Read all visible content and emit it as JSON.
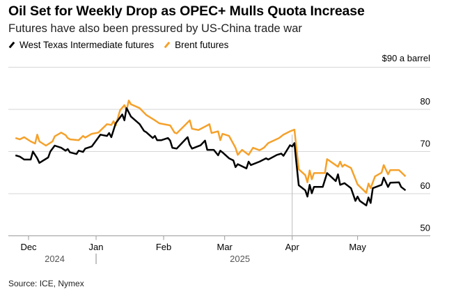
{
  "header": {
    "title": "Oil Set for Weekly Drop as OPEC+ Mulls Quota Increase",
    "subtitle": "Futures have also been pressured by US-China trade war"
  },
  "source": "Source: ICE, Nymex",
  "chart_data": {
    "type": "line",
    "title": "Oil Set for Weekly Drop as OPEC+ Mulls Quota Increase",
    "subtitle": "Futures have also been pressured by US-China trade war",
    "ylabel": "$90 a barrel",
    "ylim": [
      50,
      90
    ],
    "yticks": [
      50,
      60,
      70,
      80
    ],
    "ytick_labels": [
      "50",
      "60",
      "70",
      "80"
    ],
    "xlim": [
      "2024-11-22",
      "2025-05-30"
    ],
    "xticks": [
      {
        "date": "2024-12-01",
        "label": "Dec"
      },
      {
        "date": "2025-01-01",
        "label": "Jan"
      },
      {
        "date": "2025-02-01",
        "label": "Feb"
      },
      {
        "date": "2025-03-01",
        "label": "Mar"
      },
      {
        "date": "2025-04-01",
        "label": "Apr"
      },
      {
        "date": "2025-05-01",
        "label": "May"
      }
    ],
    "year_labels": [
      {
        "label": "2024",
        "date": "2024-12-13"
      },
      {
        "label": "2025",
        "date": "2025-03-08"
      }
    ],
    "grid": true,
    "legend_position": "top-left",
    "series": [
      {
        "name": "West Texas Intermediate futures",
        "color": "#000000",
        "points": [
          [
            "2024-11-25",
            69.1
          ],
          [
            "2024-11-27",
            68.8
          ],
          [
            "2024-11-29",
            68.1
          ],
          [
            "2024-12-02",
            68.1
          ],
          [
            "2024-12-03",
            70.0
          ],
          [
            "2024-12-05",
            68.4
          ],
          [
            "2024-12-06",
            67.3
          ],
          [
            "2024-12-10",
            68.6
          ],
          [
            "2024-12-11",
            70.0
          ],
          [
            "2024-12-13",
            71.4
          ],
          [
            "2024-12-16",
            70.9
          ],
          [
            "2024-12-18",
            70.2
          ],
          [
            "2024-12-19",
            70.6
          ],
          [
            "2024-12-20",
            69.8
          ],
          [
            "2024-12-23",
            69.4
          ],
          [
            "2024-12-24",
            70.2
          ],
          [
            "2024-12-26",
            69.9
          ],
          [
            "2024-12-27",
            70.7
          ],
          [
            "2024-12-30",
            71.2
          ],
          [
            "2025-01-03",
            74.0
          ],
          [
            "2025-01-06",
            73.7
          ],
          [
            "2025-01-07",
            74.4
          ],
          [
            "2025-01-08",
            73.4
          ],
          [
            "2025-01-10",
            76.7
          ],
          [
            "2025-01-13",
            78.8
          ],
          [
            "2025-01-14",
            77.4
          ],
          [
            "2025-01-15",
            80.3
          ],
          [
            "2025-01-17",
            78.3
          ],
          [
            "2025-01-21",
            76.5
          ],
          [
            "2025-01-23",
            74.9
          ],
          [
            "2025-01-24",
            74.6
          ],
          [
            "2025-01-27",
            73.2
          ],
          [
            "2025-01-28",
            73.7
          ],
          [
            "2025-01-29",
            72.7
          ],
          [
            "2025-01-31",
            72.7
          ],
          [
            "2025-02-03",
            73.2
          ],
          [
            "2025-02-04",
            72.6
          ],
          [
            "2025-02-05",
            70.9
          ],
          [
            "2025-02-07",
            70.7
          ],
          [
            "2025-02-11",
            72.9
          ],
          [
            "2025-02-12",
            73.4
          ],
          [
            "2025-02-13",
            71.6
          ],
          [
            "2025-02-14",
            70.7
          ],
          [
            "2025-02-18",
            71.5
          ],
          [
            "2025-02-20",
            72.6
          ],
          [
            "2025-02-21",
            70.4
          ],
          [
            "2025-02-24",
            70.4
          ],
          [
            "2025-02-26",
            69.1
          ],
          [
            "2025-02-27",
            70.2
          ],
          [
            "2025-02-28",
            69.8
          ],
          [
            "2025-03-03",
            68.4
          ],
          [
            "2025-03-05",
            67.9
          ],
          [
            "2025-03-06",
            66.3
          ],
          [
            "2025-03-07",
            67.0
          ],
          [
            "2025-03-11",
            66.0
          ],
          [
            "2025-03-12",
            67.6
          ],
          [
            "2025-03-13",
            66.8
          ],
          [
            "2025-03-17",
            67.6
          ],
          [
            "2025-03-20",
            68.4
          ],
          [
            "2025-03-21",
            68.1
          ],
          [
            "2025-03-25",
            69.2
          ],
          [
            "2025-03-27",
            69.5
          ],
          [
            "2025-03-28",
            69.0
          ],
          [
            "2025-03-31",
            71.5
          ],
          [
            "2025-04-01",
            71.2
          ],
          [
            "2025-04-02",
            72.0
          ],
          [
            "2025-04-03",
            66.9
          ],
          [
            "2025-04-04",
            62.0
          ],
          [
            "2025-04-07",
            60.8
          ],
          [
            "2025-04-08",
            59.3
          ],
          [
            "2025-04-09",
            62.1
          ],
          [
            "2025-04-10",
            60.1
          ],
          [
            "2025-04-11",
            61.6
          ],
          [
            "2025-04-15",
            61.6
          ],
          [
            "2025-04-17",
            64.9
          ],
          [
            "2025-04-21",
            63.0
          ],
          [
            "2025-04-22",
            64.6
          ],
          [
            "2025-04-23",
            62.1
          ],
          [
            "2025-04-25",
            62.5
          ],
          [
            "2025-04-28",
            61.3
          ],
          [
            "2025-04-30",
            58.3
          ],
          [
            "2025-05-01",
            59.3
          ],
          [
            "2025-05-02",
            58.3
          ],
          [
            "2025-05-05",
            57.2
          ],
          [
            "2025-05-06",
            59.1
          ],
          [
            "2025-05-07",
            57.8
          ],
          [
            "2025-05-08",
            61.3
          ],
          [
            "2025-05-12",
            62.1
          ],
          [
            "2025-05-13",
            63.8
          ],
          [
            "2025-05-15",
            61.6
          ],
          [
            "2025-05-16",
            62.6
          ],
          [
            "2025-05-20",
            62.7
          ],
          [
            "2025-05-21",
            61.6
          ],
          [
            "2025-05-23",
            60.8
          ]
        ]
      },
      {
        "name": "Brent futures",
        "color": "#F5A12B",
        "points": [
          [
            "2024-11-25",
            73.2
          ],
          [
            "2024-11-27",
            72.9
          ],
          [
            "2024-11-29",
            73.4
          ],
          [
            "2024-12-02",
            72.4
          ],
          [
            "2024-12-04",
            71.9
          ],
          [
            "2024-12-05",
            74.0
          ],
          [
            "2024-12-06",
            72.4
          ],
          [
            "2024-12-09",
            71.4
          ],
          [
            "2024-12-12",
            72.4
          ],
          [
            "2024-12-13",
            73.6
          ],
          [
            "2024-12-16",
            74.5
          ],
          [
            "2024-12-18",
            73.9
          ],
          [
            "2024-12-19",
            73.2
          ],
          [
            "2024-12-20",
            72.9
          ],
          [
            "2024-12-24",
            72.7
          ],
          [
            "2024-12-26",
            73.7
          ],
          [
            "2024-12-27",
            73.3
          ],
          [
            "2024-12-30",
            74.2
          ],
          [
            "2025-01-02",
            74.5
          ],
          [
            "2025-01-06",
            76.5
          ],
          [
            "2025-01-08",
            76.3
          ],
          [
            "2025-01-09",
            77.2
          ],
          [
            "2025-01-10",
            76.2
          ],
          [
            "2025-01-12",
            79.8
          ],
          [
            "2025-01-14",
            81.0
          ],
          [
            "2025-01-15",
            79.8
          ],
          [
            "2025-01-16",
            82.1
          ],
          [
            "2025-01-17",
            81.2
          ],
          [
            "2025-01-21",
            80.3
          ],
          [
            "2025-01-24",
            78.7
          ],
          [
            "2025-01-28",
            77.4
          ],
          [
            "2025-01-30",
            76.7
          ],
          [
            "2025-02-04",
            76.2
          ],
          [
            "2025-02-06",
            74.5
          ],
          [
            "2025-02-07",
            74.3
          ],
          [
            "2025-02-13",
            77.4
          ],
          [
            "2025-02-14",
            75.4
          ],
          [
            "2025-02-17",
            75.1
          ],
          [
            "2025-02-21",
            76.2
          ],
          [
            "2025-02-22",
            76.5
          ],
          [
            "2025-02-23",
            74.4
          ],
          [
            "2025-02-26",
            74.8
          ],
          [
            "2025-02-27",
            72.7
          ],
          [
            "2025-02-28",
            74.2
          ],
          [
            "2025-03-03",
            73.7
          ],
          [
            "2025-03-06",
            70.9
          ],
          [
            "2025-03-07",
            69.2
          ],
          [
            "2025-03-09",
            70.4
          ],
          [
            "2025-03-12",
            69.2
          ],
          [
            "2025-03-14",
            70.9
          ],
          [
            "2025-03-17",
            70.3
          ],
          [
            "2025-03-19",
            70.9
          ],
          [
            "2025-03-21",
            72.0
          ],
          [
            "2025-03-26",
            73.2
          ],
          [
            "2025-03-28",
            74.0
          ],
          [
            "2025-03-31",
            74.8
          ],
          [
            "2025-04-01",
            75.0
          ],
          [
            "2025-04-02",
            75.2
          ],
          [
            "2025-04-04",
            65.8
          ],
          [
            "2025-04-07",
            64.4
          ],
          [
            "2025-04-08",
            62.7
          ],
          [
            "2025-04-09",
            65.5
          ],
          [
            "2025-04-10",
            63.4
          ],
          [
            "2025-04-11",
            64.9
          ],
          [
            "2025-04-16",
            64.9
          ],
          [
            "2025-04-17",
            68.2
          ],
          [
            "2025-04-22",
            66.4
          ],
          [
            "2025-04-23",
            67.6
          ],
          [
            "2025-04-24",
            66.4
          ],
          [
            "2025-04-25",
            66.9
          ],
          [
            "2025-04-28",
            66.1
          ],
          [
            "2025-05-01",
            62.2
          ],
          [
            "2025-05-05",
            60.2
          ],
          [
            "2025-05-06",
            62.4
          ],
          [
            "2025-05-07",
            61.3
          ],
          [
            "2025-05-09",
            64.1
          ],
          [
            "2025-05-12",
            65.0
          ],
          [
            "2025-05-13",
            66.8
          ],
          [
            "2025-05-15",
            64.6
          ],
          [
            "2025-05-16",
            65.6
          ],
          [
            "2025-05-20",
            65.6
          ],
          [
            "2025-05-23",
            64.1
          ]
        ]
      }
    ]
  }
}
